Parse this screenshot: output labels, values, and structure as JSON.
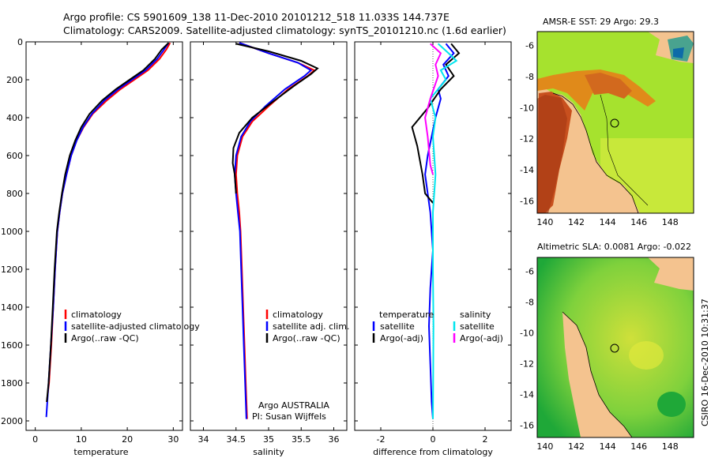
{
  "header": {
    "line1": "Argo profile: CS 5901609_138 11-Dec-2010 20101212_518 11.033S 144.737E",
    "line2": "Climatology: CARS2009. Satellite-adjusted climatology: synTS_20101210.nc (1.6d earlier)"
  },
  "side_label": "CSIRO 16-Dec-2010 10:31:37",
  "credit": {
    "line1": "Argo AUSTRALIA",
    "line2": "PI: Susan Wijffels"
  },
  "colors": {
    "climatology": "#ff0000",
    "satellite": "#0000ff",
    "argo": "#000000",
    "salinity_sat": "#00e5ee",
    "salinity_argo": "#ff00ff",
    "land": "#f4c38f"
  },
  "chart_data": [
    {
      "type": "line",
      "title": "",
      "xlabel": "temperature",
      "ylabel": "",
      "xlim": [
        -2,
        32
      ],
      "ylim": [
        2050,
        0
      ],
      "xticks": [
        0,
        10,
        20,
        30
      ],
      "yticks": [
        0,
        200,
        400,
        600,
        800,
        1000,
        1200,
        1400,
        1600,
        1800,
        2000
      ],
      "legend": [
        "climatology",
        "satellite-adjusted climatology",
        "Argo(..raw -QC)"
      ],
      "series": [
        {
          "name": "climatology",
          "color": "#ff0000",
          "points": [
            [
              29.3,
              5
            ],
            [
              28.5,
              40
            ],
            [
              27.0,
              90
            ],
            [
              24.5,
              150
            ],
            [
              21.5,
              200
            ],
            [
              18.5,
              250
            ],
            [
              15.5,
              310
            ],
            [
              12.5,
              380
            ],
            [
              10.5,
              450
            ],
            [
              9.0,
              520
            ],
            [
              7.8,
              600
            ],
            [
              6.8,
              700
            ],
            [
              5.9,
              800
            ],
            [
              5.3,
              900
            ],
            [
              4.8,
              1000
            ],
            [
              4.3,
              1200
            ],
            [
              3.9,
              1400
            ],
            [
              3.5,
              1600
            ],
            [
              3.0,
              1800
            ],
            [
              2.5,
              1900
            ]
          ]
        },
        {
          "name": "satellite-adjusted climatology",
          "color": "#0000ff",
          "points": [
            [
              29.0,
              5
            ],
            [
              28.0,
              40
            ],
            [
              26.5,
              90
            ],
            [
              24.0,
              150
            ],
            [
              21.0,
              200
            ],
            [
              18.0,
              250
            ],
            [
              15.0,
              310
            ],
            [
              12.3,
              380
            ],
            [
              10.4,
              450
            ],
            [
              9.0,
              520
            ],
            [
              7.8,
              600
            ],
            [
              6.8,
              700
            ],
            [
              5.9,
              800
            ],
            [
              5.3,
              900
            ],
            [
              4.8,
              1000
            ],
            [
              4.3,
              1200
            ],
            [
              3.9,
              1400
            ],
            [
              3.4,
              1600
            ],
            [
              2.9,
              1800
            ],
            [
              2.4,
              1980
            ]
          ]
        },
        {
          "name": "Argo(..raw -QC)",
          "color": "#000000",
          "points": [
            [
              29.0,
              5
            ],
            [
              27.5,
              40
            ],
            [
              26.0,
              90
            ],
            [
              23.5,
              150
            ],
            [
              20.5,
              200
            ],
            [
              17.5,
              250
            ],
            [
              14.5,
              310
            ],
            [
              11.8,
              380
            ],
            [
              10.0,
              450
            ],
            [
              8.7,
              520
            ],
            [
              7.5,
              600
            ],
            [
              6.5,
              700
            ],
            [
              5.8,
              800
            ],
            [
              5.2,
              900
            ],
            [
              4.7,
              1000
            ],
            [
              4.2,
              1200
            ],
            [
              3.8,
              1400
            ],
            [
              3.4,
              1600
            ],
            [
              2.9,
              1800
            ],
            [
              2.5,
              1900
            ]
          ]
        }
      ]
    },
    {
      "type": "line",
      "title": "",
      "xlabel": "salinity",
      "ylabel": "",
      "xlim": [
        33.8,
        36.2
      ],
      "ylim": [
        2050,
        0
      ],
      "xticks": [
        34,
        34.5,
        35,
        35.5,
        36
      ],
      "yticks": [
        0,
        200,
        400,
        600,
        800,
        1000,
        1200,
        1400,
        1600,
        1800,
        2000
      ],
      "legend": [
        "climatology",
        "satellite adj. clim.",
        "Argo(..raw -QC)"
      ],
      "series": [
        {
          "name": "climatology",
          "color": "#ff0000",
          "points": [
            [
              34.55,
              5
            ],
            [
              35.0,
              60
            ],
            [
              35.45,
              110
            ],
            [
              35.7,
              150
            ],
            [
              35.6,
              180
            ],
            [
              35.3,
              250
            ],
            [
              35.0,
              340
            ],
            [
              34.75,
              420
            ],
            [
              34.6,
              500
            ],
            [
              34.52,
              600
            ],
            [
              34.5,
              700
            ],
            [
              34.52,
              800
            ],
            [
              34.55,
              900
            ],
            [
              34.57,
              1000
            ],
            [
              34.59,
              1200
            ],
            [
              34.61,
              1400
            ],
            [
              34.63,
              1600
            ],
            [
              34.65,
              1800
            ],
            [
              34.67,
              1990
            ]
          ]
        },
        {
          "name": "satellite adj. clim.",
          "color": "#0000ff",
          "points": [
            [
              34.55,
              5
            ],
            [
              35.0,
              60
            ],
            [
              35.45,
              110
            ],
            [
              35.65,
              150
            ],
            [
              35.55,
              180
            ],
            [
              35.25,
              250
            ],
            [
              34.95,
              340
            ],
            [
              34.72,
              420
            ],
            [
              34.58,
              500
            ],
            [
              34.5,
              600
            ],
            [
              34.48,
              700
            ],
            [
              34.5,
              800
            ],
            [
              34.53,
              900
            ],
            [
              34.56,
              1000
            ],
            [
              34.58,
              1200
            ],
            [
              34.6,
              1400
            ],
            [
              34.62,
              1600
            ],
            [
              34.64,
              1800
            ],
            [
              34.66,
              1990
            ]
          ]
        },
        {
          "name": "Argo(..raw -QC)",
          "color": "#000000",
          "points": [
            [
              34.5,
              10
            ],
            [
              35.0,
              50
            ],
            [
              35.5,
              100
            ],
            [
              35.75,
              140
            ],
            [
              35.65,
              170
            ],
            [
              35.4,
              230
            ],
            [
              35.05,
              320
            ],
            [
              34.75,
              400
            ],
            [
              34.55,
              480
            ],
            [
              34.46,
              560
            ],
            [
              34.45,
              640
            ],
            [
              34.48,
              700
            ],
            [
              34.5,
              800
            ]
          ]
        }
      ]
    },
    {
      "type": "line",
      "title": "",
      "xlabel": "difference from climatology",
      "ylabel": "",
      "xlim": [
        -3,
        3
      ],
      "ylim": [
        2050,
        0
      ],
      "xticks": [
        -2,
        0,
        2
      ],
      "yticks": [
        0,
        200,
        400,
        600,
        800,
        1000,
        1200,
        1400,
        1600,
        1800,
        2000
      ],
      "legend_left_title": "temperature",
      "legend_left": [
        "satellite",
        "Argo(-adj)"
      ],
      "legend_right_title": "salinity",
      "legend_right": [
        "satellite",
        "Argo(-adj)"
      ],
      "series": [
        {
          "name": "temperature satellite",
          "color": "#0000ff",
          "points": [
            [
              0.5,
              10
            ],
            [
              0.8,
              60
            ],
            [
              0.4,
              120
            ],
            [
              0.6,
              180
            ],
            [
              0.2,
              250
            ],
            [
              0.3,
              300
            ],
            [
              0.1,
              400
            ],
            [
              -0.2,
              600
            ],
            [
              -0.3,
              700
            ],
            [
              -0.1,
              900
            ],
            [
              0.0,
              1100
            ],
            [
              -0.1,
              1300
            ],
            [
              -0.15,
              1500
            ],
            [
              -0.1,
              1700
            ],
            [
              -0.05,
              1900
            ],
            [
              0.0,
              1990
            ]
          ]
        },
        {
          "name": "temperature Argo(-adj)",
          "color": "#000000",
          "points": [
            [
              0.7,
              10
            ],
            [
              1.0,
              60
            ],
            [
              0.5,
              120
            ],
            [
              0.8,
              180
            ],
            [
              0.3,
              250
            ],
            [
              -0.2,
              350
            ],
            [
              -0.8,
              450
            ],
            [
              -0.6,
              550
            ],
            [
              -0.4,
              700
            ],
            [
              -0.3,
              800
            ],
            [
              0.0,
              850
            ]
          ]
        },
        {
          "name": "salinity satellite",
          "color": "#00e5ee",
          "points": [
            [
              0.2,
              10
            ],
            [
              0.6,
              60
            ],
            [
              0.9,
              100
            ],
            [
              0.3,
              150
            ],
            [
              0.5,
              200
            ],
            [
              -0.1,
              300
            ],
            [
              0.1,
              400
            ],
            [
              0.0,
              500
            ],
            [
              0.1,
              700
            ],
            [
              0.0,
              900
            ],
            [
              0.0,
              1200
            ],
            [
              0.02,
              1500
            ],
            [
              0.01,
              1800
            ],
            [
              0.0,
              1990
            ]
          ]
        },
        {
          "name": "salinity Argo(-adj)",
          "color": "#ff00ff",
          "points": [
            [
              -0.1,
              10
            ],
            [
              0.3,
              60
            ],
            [
              0.1,
              120
            ],
            [
              0.2,
              180
            ],
            [
              -0.1,
              300
            ],
            [
              -0.3,
              400
            ],
            [
              -0.2,
              500
            ],
            [
              -0.1,
              650
            ],
            [
              0.0,
              700
            ]
          ]
        }
      ]
    },
    {
      "type": "heatmap",
      "title": "AMSR-E SST: 29 Argo: 29.3",
      "xlim": [
        139.5,
        149.5
      ],
      "ylim": [
        -16.8,
        -5.1
      ],
      "xticks": [
        140,
        142,
        144,
        146,
        148
      ],
      "yticks": [
        -6,
        -8,
        -10,
        -12,
        -14,
        -16
      ],
      "argo_position": [
        144.737,
        -11.033
      ]
    },
    {
      "type": "heatmap",
      "title": "Altimetric SLA: 0.0081 Argo: -0.022",
      "xlim": [
        139.5,
        149.5
      ],
      "ylim": [
        -16.8,
        -5.1
      ],
      "xticks": [
        140,
        142,
        144,
        146,
        148
      ],
      "yticks": [
        -6,
        -8,
        -10,
        -12,
        -14,
        -16
      ],
      "argo_position": [
        144.737,
        -11.033
      ]
    }
  ]
}
